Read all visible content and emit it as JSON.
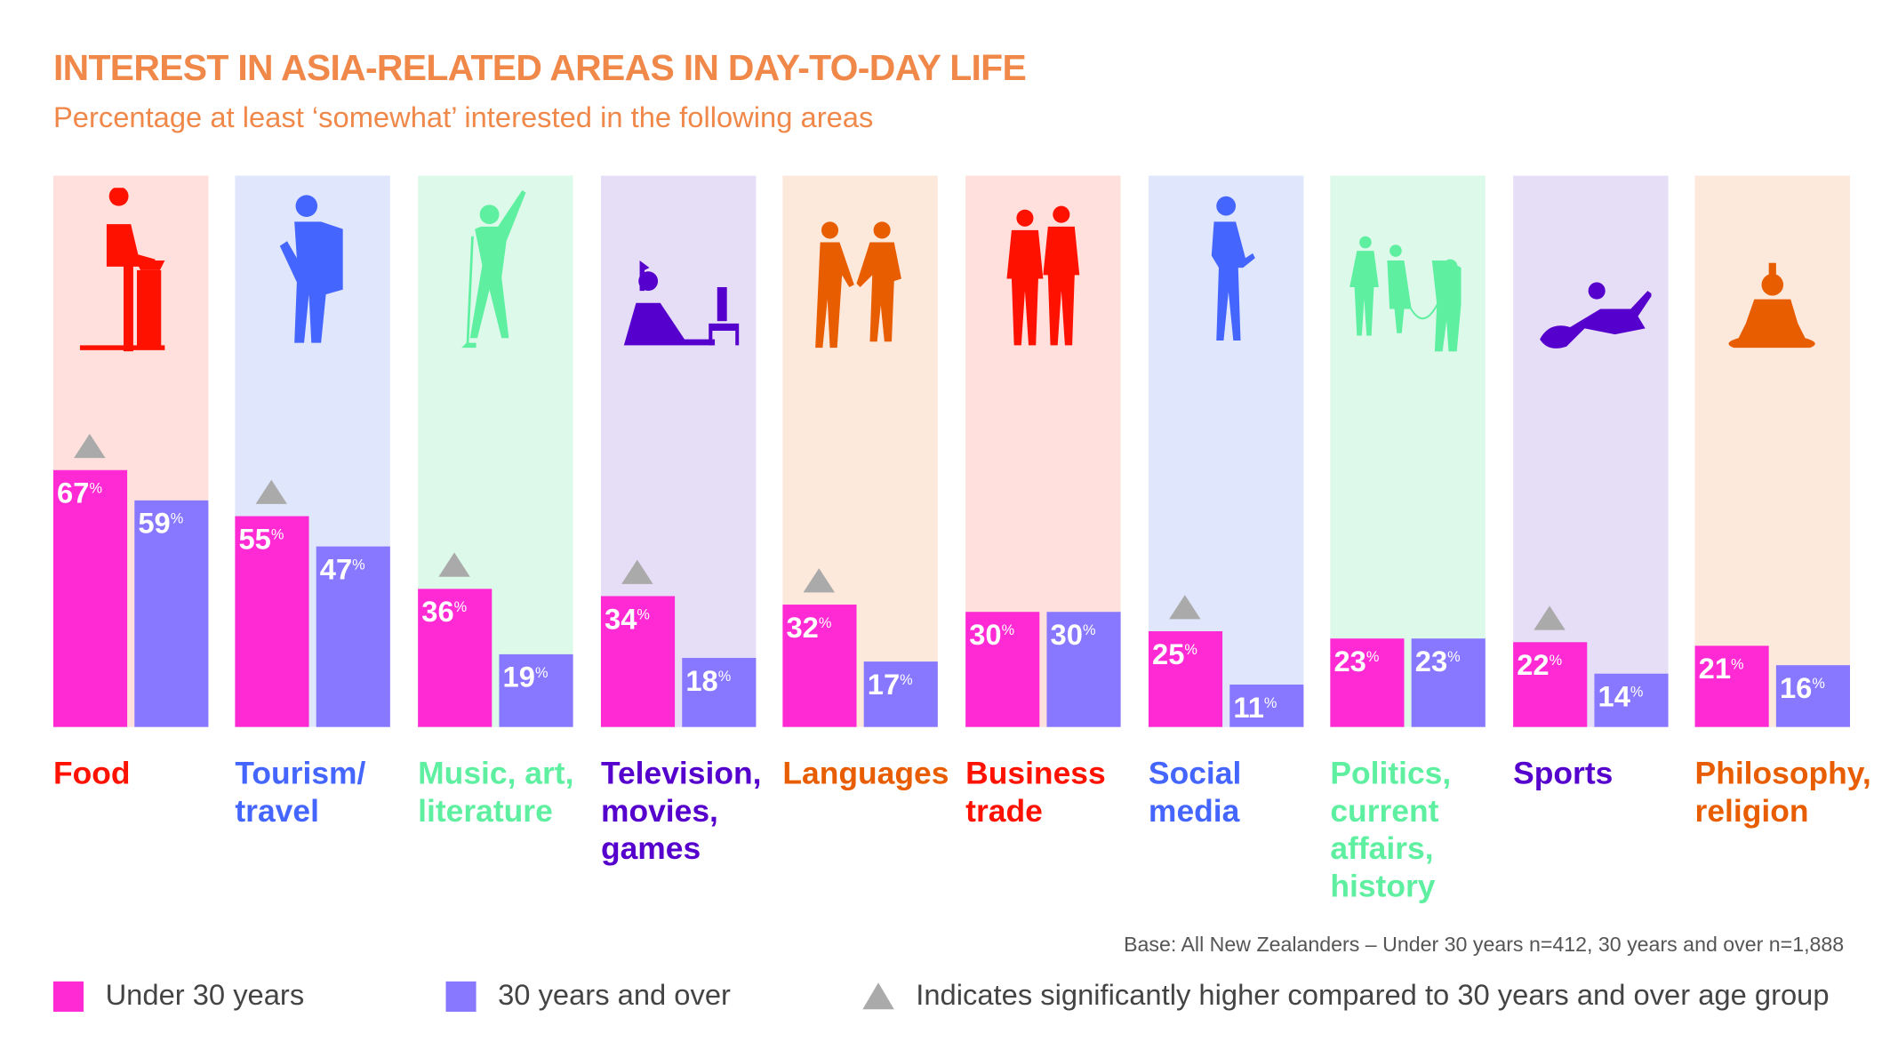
{
  "colors": {
    "under30": "#ff2ad4",
    "over30": "#8877ff",
    "triangle": "#aaaaaa",
    "title": "#f0884a"
  },
  "chart_data": {
    "type": "bar",
    "title": "INTEREST IN ASIA-RELATED AREAS IN DAY-TO-DAY LIFE",
    "subtitle": "Percentage at least ‘somewhat’ interested in the following areas",
    "ylim": [
      0,
      100
    ],
    "unit": "%",
    "categories": [
      {
        "label": "Food",
        "color": "#ff1100",
        "bg": "#ffe0dc",
        "icon": "chef-icon"
      },
      {
        "label": "Tourism/\ntravel",
        "color": "#4466ff",
        "bg": "#e0e6fc",
        "icon": "backpacker-icon"
      },
      {
        "label": "Music, art,\nliterature",
        "color": "#5ef0a0",
        "bg": "#dcf9ea",
        "icon": "singer-icon"
      },
      {
        "label": "Television,\nmovies,\ngames",
        "color": "#5500cc",
        "bg": "#e6ddf6",
        "icon": "tv-viewer-icon"
      },
      {
        "label": "Languages",
        "color": "#e85d00",
        "bg": "#fde8dc",
        "icon": "handshake-icon"
      },
      {
        "label": "Business\ntrade",
        "color": "#ff1100",
        "bg": "#ffe0dc",
        "icon": "businessmen-icon"
      },
      {
        "label": "Social\nmedia",
        "color": "#4466ff",
        "bg": "#e0e6fc",
        "icon": "phone-user-icon"
      },
      {
        "label": "Politics,\ncurrent\naffairs,\nhistory",
        "color": "#5ef0a0",
        "bg": "#dcf9ea",
        "icon": "reporter-icon"
      },
      {
        "label": "Sports",
        "color": "#5500cc",
        "bg": "#e6ddf6",
        "icon": "athlete-icon"
      },
      {
        "label": "Philosophy,\nreligion",
        "color": "#e85d00",
        "bg": "#fde8dc",
        "icon": "buddha-icon"
      }
    ],
    "series": [
      {
        "name": "Under 30 years",
        "values": [
          67,
          55,
          36,
          34,
          32,
          30,
          25,
          23,
          22,
          21
        ]
      },
      {
        "name": "30 years and over",
        "values": [
          59,
          47,
          19,
          18,
          17,
          30,
          11,
          23,
          14,
          16
        ]
      }
    ],
    "significant": [
      true,
      true,
      true,
      true,
      true,
      false,
      true,
      false,
      true,
      false
    ]
  },
  "base_note": "Base: All New Zealanders – Under 30 years n=412, 30 years and over n=1,888",
  "legend": {
    "under30": "Under 30 years",
    "over30": "30 years and over",
    "triangle": "Indicates significantly higher compared to 30 years and over age group"
  }
}
